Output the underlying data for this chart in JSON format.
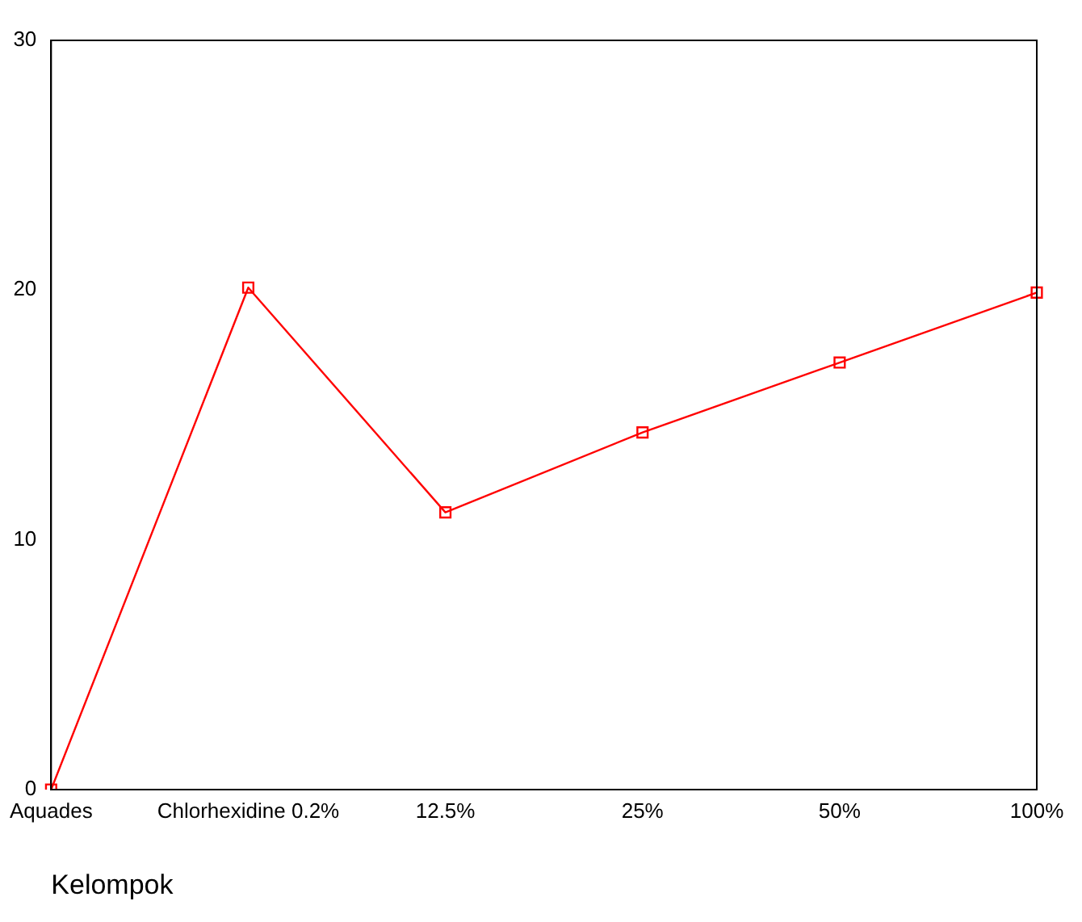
{
  "chart_data": {
    "type": "line",
    "xlabel": "Kelompok",
    "categories": [
      "Aquades",
      "Chlorhexidine 0.2%",
      "12.5%",
      "25%",
      "50%",
      "100%"
    ],
    "series": [
      {
        "color": "#ff0000",
        "values": [
          0,
          20.1,
          11.1,
          14.3,
          17.1,
          19.9
        ]
      }
    ],
    "ylim": [
      0,
      30
    ],
    "yticks": [
      0,
      10,
      20,
      30
    ],
    "grid": false,
    "legend": false,
    "marker": "square",
    "line_style": "solid"
  }
}
